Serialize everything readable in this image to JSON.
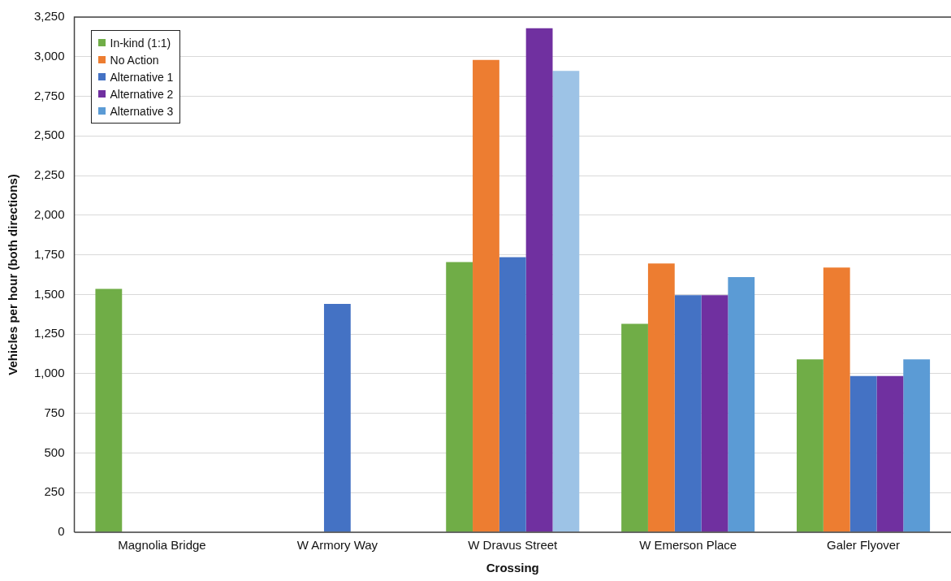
{
  "chart_data": {
    "type": "bar",
    "xlabel": "Crossing",
    "ylabel": "Vehicles per hour (both directions)",
    "categories": [
      "Magnolia Bridge",
      "W Armory Way",
      "W Dravus Street",
      "W Emerson Place",
      "Galer Flyover"
    ],
    "series": [
      {
        "name": "In-kind (1:1)",
        "color": "#70ad47",
        "values": [
          1535,
          null,
          1705,
          1315,
          1090
        ]
      },
      {
        "name": "No Action",
        "color": "#ed7d31",
        "values": [
          null,
          null,
          2980,
          1695,
          1670
        ]
      },
      {
        "name": "Alternative 1",
        "color": "#4472c4",
        "values": [
          null,
          1440,
          1735,
          1495,
          985
        ]
      },
      {
        "name": "Alternative 2",
        "color": "#7030a0",
        "values": [
          null,
          null,
          3180,
          1495,
          985
        ]
      },
      {
        "name": "Alternative 3",
        "color": "#5b9bd5",
        "colors": [
          "#5b9bd5",
          "#5b9bd5",
          "#9dc3e6",
          "#5b9bd5",
          "#5b9bd5"
        ],
        "values": [
          null,
          null,
          2910,
          1610,
          1090
        ]
      }
    ],
    "ylim": [
      0,
      3250
    ],
    "yticks": [
      0,
      250,
      500,
      750,
      {
        "value": 1000,
        "label": "1,000"
      },
      {
        "value": 1250,
        "label": "1,250"
      },
      {
        "value": 1500,
        "label": "1,500"
      },
      {
        "value": 1750,
        "label": "1,750"
      },
      {
        "value": 2000,
        "label": "2,000"
      },
      {
        "value": 2250,
        "label": "2,250"
      },
      {
        "value": 2500,
        "label": "2,500"
      },
      {
        "value": 2750,
        "label": "2,750"
      },
      {
        "value": 3000,
        "label": "3,000"
      },
      {
        "value": 3250,
        "label": "3,250"
      }
    ],
    "grid": "y",
    "legend": "top left"
  }
}
